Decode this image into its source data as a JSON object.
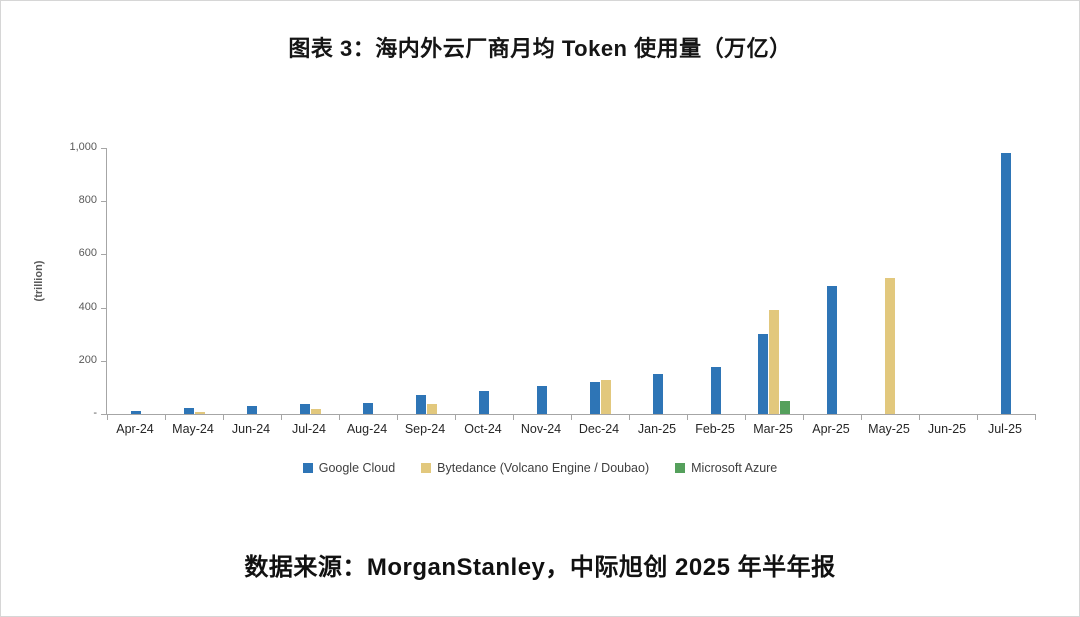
{
  "title": "图表 3：海内外云厂商月均 Token 使用量（万亿）",
  "source": "数据来源：MorganStanley，中际旭创 2025 年半年报",
  "chart_data": {
    "type": "bar",
    "title": "图表 3：海内外云厂商月均 Token 使用量（万亿）",
    "ylabel": "(trillion)",
    "xlabel": "",
    "ylim": [
      0,
      1000
    ],
    "yticks": [
      0,
      200,
      400,
      600,
      800,
      1000
    ],
    "ytick_labels": [
      "-",
      "200",
      "400",
      "600",
      "800",
      "1,000"
    ],
    "grid": false,
    "legend_position": "bottom",
    "categories": [
      "Apr-24",
      "May-24",
      "Jun-24",
      "Jul-24",
      "Aug-24",
      "Sep-24",
      "Oct-24",
      "Nov-24",
      "Dec-24",
      "Jan-25",
      "Feb-25",
      "Mar-25",
      "Apr-25",
      "May-25",
      "Jun-25",
      "Jul-25"
    ],
    "series": [
      {
        "name": "Google Cloud",
        "color": "#2e75b6",
        "values": [
          12,
          22,
          30,
          38,
          42,
          70,
          85,
          105,
          120,
          150,
          175,
          300,
          480,
          0,
          0,
          980
        ]
      },
      {
        "name": "Bytedance (Volcano Engine / Doubao)",
        "color": "#e2c87d",
        "values": [
          0,
          8,
          0,
          18,
          0,
          38,
          0,
          0,
          128,
          0,
          0,
          390,
          0,
          510,
          0,
          0
        ]
      },
      {
        "name": "Microsoft Azure",
        "color": "#55a05c",
        "values": [
          0,
          0,
          0,
          0,
          0,
          0,
          0,
          0,
          0,
          0,
          0,
          48,
          0,
          0,
          0,
          0
        ]
      }
    ]
  }
}
